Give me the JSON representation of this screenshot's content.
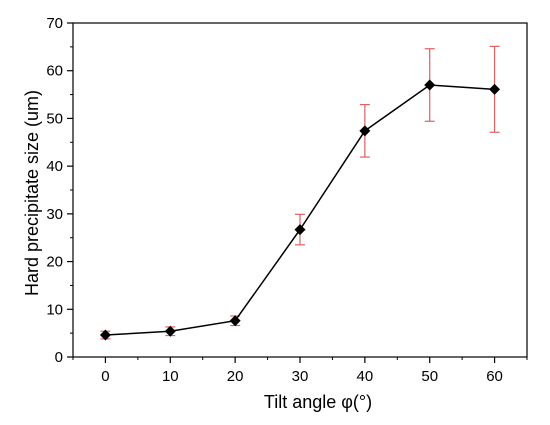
{
  "chart_data": {
    "type": "line",
    "xlabel": "Tilt angle φ(°)",
    "ylabel": "Hard precipitate size (um)",
    "xlim": [
      -5,
      65
    ],
    "ylim": [
      0,
      70
    ],
    "xticks": [
      0,
      10,
      20,
      30,
      40,
      50,
      60
    ],
    "yticks": [
      0,
      10,
      20,
      30,
      40,
      50,
      60,
      70
    ],
    "grid": false,
    "x": [
      0,
      10,
      20,
      30,
      40,
      50,
      60
    ],
    "series": [
      {
        "values": [
          4.6,
          5.4,
          7.6,
          26.7,
          47.4,
          57.0,
          56.1
        ],
        "error": [
          0.8,
          0.9,
          1.0,
          3.2,
          5.5,
          7.6,
          9.0
        ],
        "line_color": "#000000",
        "marker": "diamond",
        "errorbar_color": "#e06060"
      }
    ]
  }
}
